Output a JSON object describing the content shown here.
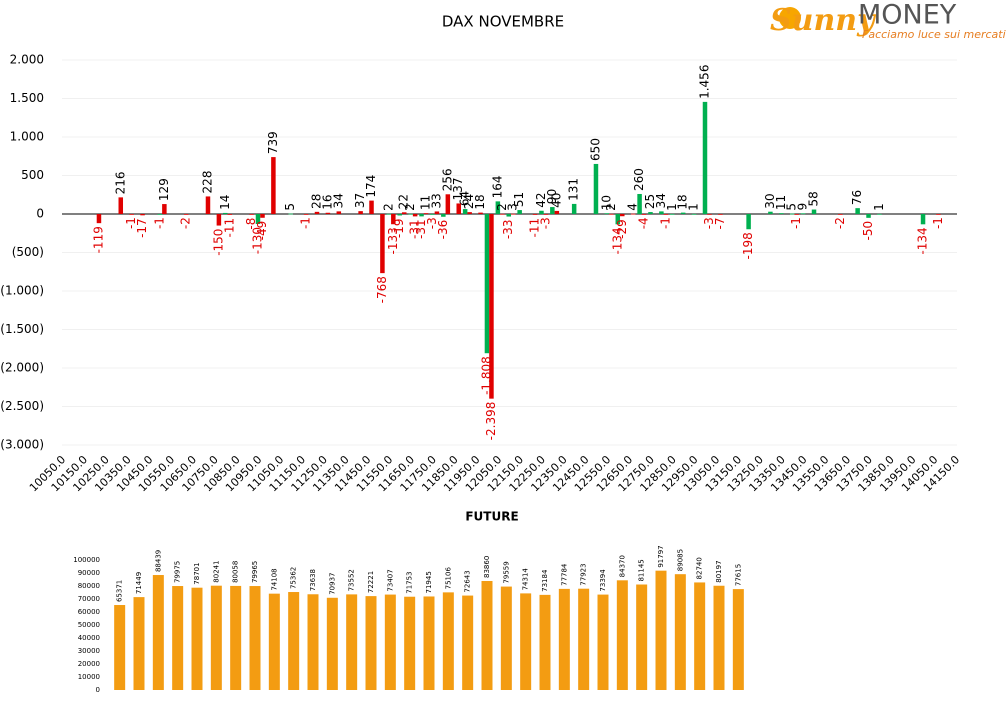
{
  "chart_data": [
    {
      "type": "bar",
      "title": "DAX NOVEMBRE",
      "xlim": [
        10050,
        14150
      ],
      "xticks": [
        {
          "value": 10050,
          "label": "10050.0"
        },
        {
          "value": 10150,
          "label": "10150.0"
        },
        {
          "value": 10250,
          "label": "10250.0"
        },
        {
          "value": 10350,
          "label": "10350.0"
        },
        {
          "value": 10450,
          "label": "10450.0"
        },
        {
          "value": 10550,
          "label": "10550.0"
        },
        {
          "value": 10650,
          "label": "10650.0"
        },
        {
          "value": 10750,
          "label": "10750.0"
        },
        {
          "value": 10850,
          "label": "10850.0"
        },
        {
          "value": 10950,
          "label": "10950.0"
        },
        {
          "value": 11050,
          "label": "11050.0"
        },
        {
          "value": 11150,
          "label": "11150.0"
        },
        {
          "value": 11250,
          "label": "11250.0"
        },
        {
          "value": 11350,
          "label": "11350.0"
        },
        {
          "value": 11450,
          "label": "11450.0"
        },
        {
          "value": 11550,
          "label": "11550.0"
        },
        {
          "value": 11650,
          "label": "11650.0"
        },
        {
          "value": 11750,
          "label": "11750.0"
        },
        {
          "value": 11850,
          "label": "11850.0"
        },
        {
          "value": 11950,
          "label": "11950.0"
        },
        {
          "value": 12050,
          "label": "12050.0"
        },
        {
          "value": 12150,
          "label": "12150.0"
        },
        {
          "value": 12250,
          "label": "12250.0"
        },
        {
          "value": 12350,
          "label": "12350.0"
        },
        {
          "value": 12450,
          "label": "12450.0"
        },
        {
          "value": 12550,
          "label": "12550.0"
        },
        {
          "value": 12650,
          "label": "12650.0"
        },
        {
          "value": 12750,
          "label": "12750.0"
        },
        {
          "value": 12850,
          "label": "12850.0"
        },
        {
          "value": 12950,
          "label": "12950.0"
        },
        {
          "value": 13050,
          "label": "13050.0"
        },
        {
          "value": 13150,
          "label": "13150.0"
        },
        {
          "value": 13250,
          "label": "13250.0"
        },
        {
          "value": 13350,
          "label": "13350.0"
        },
        {
          "value": 13450,
          "label": "13450.0"
        },
        {
          "value": 13550,
          "label": "13550.0"
        },
        {
          "value": 13650,
          "label": "13650.0"
        },
        {
          "value": 13750,
          "label": "13750.0"
        },
        {
          "value": 13850,
          "label": "13850.0"
        },
        {
          "value": 13950,
          "label": "13950.0"
        },
        {
          "value": 14050,
          "label": "14050.0"
        },
        {
          "value": 14150,
          "label": "14150.0"
        }
      ],
      "ylim": [
        -3000,
        2000
      ],
      "yticks": [
        {
          "value": -3000,
          "label": "(3.000)"
        },
        {
          "value": -2500,
          "label": "(2.500)"
        },
        {
          "value": -2000,
          "label": "(2.000)"
        },
        {
          "value": -1500,
          "label": "(1.500)"
        },
        {
          "value": -1000,
          "label": "(1.000)"
        },
        {
          "value": -500,
          "label": "(500)"
        },
        0,
        500,
        {
          "value": 1000,
          "label": "1.000"
        },
        {
          "value": 1500,
          "label": "1.500"
        },
        {
          "value": 2000,
          "label": "2.000"
        }
      ],
      "grid": true,
      "series": [
        {
          "color": "#00b050",
          "x": [
            10500,
            10800,
            10950,
            11100,
            11550,
            11600,
            11650,
            11700,
            11750,
            11800,
            11900,
            12000,
            12050,
            12100,
            12150,
            12250,
            12300,
            12400,
            12500,
            12550,
            12600,
            12700,
            12750,
            12800,
            12850,
            12900,
            12950,
            13000,
            13200,
            13300,
            13350,
            13400,
            13450,
            13500,
            13700,
            13750,
            13800,
            14000
          ],
          "values": [
            -1,
            14,
            -130,
            5,
            2,
            -19,
            2,
            -31,
            -3,
            -36,
            64,
            -1808,
            164,
            -33,
            51,
            42,
            90,
            131,
            650,
            10,
            -134,
            260,
            25,
            34,
            1,
            18,
            1,
            1456,
            -198,
            30,
            11,
            5,
            9,
            58,
            76,
            -50,
            1,
            -134
          ],
          "value_labels": [
            null,
            null,
            null,
            null,
            null,
            null,
            null,
            null,
            null,
            null,
            null,
            "-1.808",
            null,
            null,
            null,
            null,
            null,
            null,
            null,
            null,
            null,
            null,
            null,
            null,
            null,
            null,
            null,
            "1.456",
            null,
            null,
            null,
            null,
            null,
            null,
            null,
            null,
            null,
            null
          ]
        },
        {
          "color": "#e00000",
          "x": [
            10200,
            10300,
            10350,
            10400,
            10500,
            10600,
            10700,
            10750,
            10800,
            10900,
            10950,
            11000,
            11150,
            11200,
            11250,
            11300,
            11400,
            11450,
            11500,
            11550,
            11600,
            11650,
            11700,
            11750,
            11800,
            11850,
            11900,
            11950,
            12000,
            12050,
            12100,
            12200,
            12250,
            12300,
            12550,
            12600,
            12650,
            12700,
            12800,
            13000,
            13050,
            13400,
            13600,
            14050
          ],
          "values": [
            -119,
            216,
            -1,
            -17,
            129,
            -2,
            228,
            -150,
            -11,
            -8,
            -49,
            739,
            -1,
            28,
            16,
            34,
            37,
            174,
            -768,
            -133,
            22,
            -31,
            11,
            33,
            256,
            137,
            24,
            18,
            -2398,
            2,
            3,
            -11,
            -3,
            40,
            2,
            -29,
            4,
            -4,
            -1,
            -3,
            -7,
            -1,
            -2,
            -1
          ],
          "value_labels": [
            null,
            null,
            null,
            null,
            null,
            null,
            null,
            null,
            null,
            null,
            null,
            null,
            null,
            null,
            null,
            null,
            null,
            null,
            null,
            null,
            null,
            null,
            null,
            null,
            null,
            null,
            null,
            null,
            "-2.398",
            null,
            null,
            null,
            null,
            null,
            null,
            null,
            null,
            null,
            null,
            null,
            null,
            null,
            null,
            null
          ]
        }
      ]
    },
    {
      "type": "bar",
      "title": "FUTURE",
      "color": "#f39c12",
      "ylim": [
        0,
        100000
      ],
      "yticks": [
        0,
        10000,
        20000,
        30000,
        40000,
        50000,
        60000,
        70000,
        80000,
        90000,
        100000
      ],
      "grid": false,
      "values": [
        65371,
        71449,
        88439,
        79975,
        78701,
        80241,
        80058,
        79965,
        74108,
        75362,
        73638,
        70937,
        73552,
        72221,
        73407,
        71753,
        71945,
        75106,
        72643,
        83860,
        79559,
        74314,
        73184,
        77784,
        77923,
        73394,
        84370,
        81145,
        91797,
        89085,
        82740,
        80197,
        77615
      ]
    }
  ],
  "logo": {
    "script": "Sunny",
    "brand": "MONEY",
    "tagline": "Facciamo luce sui mercati"
  }
}
